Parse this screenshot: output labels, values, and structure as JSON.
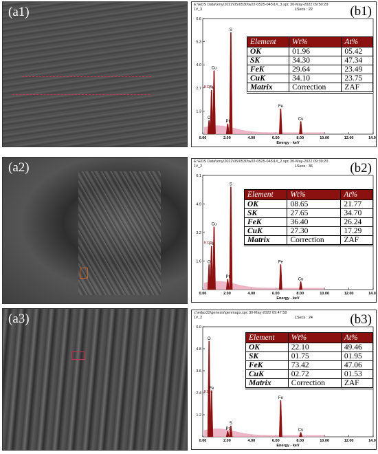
{
  "rows": [
    {
      "sem_label": "(a1)",
      "eds_label": "(b1)",
      "eds_path": "E:\\EDS Data\\xmy\\2022\\05\\0530\\w22-0525-045\\1#_3.spc  30-May-2022 09:50:29",
      "eds_sub": "1#_3",
      "lsecs": "LSecs : 22",
      "y_ticks": [
        "6.6",
        "5.3",
        "4.0",
        "2.7",
        "1.3"
      ],
      "peaks": [
        {
          "name": "O",
          "x": 0.52,
          "h": 0.12
        },
        {
          "name": "Fe",
          "x": 0.72,
          "h": 0.38
        },
        {
          "name": "Cu",
          "x": 0.93,
          "h": 0.55
        },
        {
          "name": "Pt",
          "x": 2.05,
          "h": 0.09
        },
        {
          "name": "S",
          "x": 2.31,
          "h": 0.88
        },
        {
          "name": "Fe",
          "x": 6.4,
          "h": 0.22
        },
        {
          "name": "Cu",
          "x": 8.05,
          "h": 0.11
        }
      ],
      "table": {
        "headers": [
          "Element",
          "Wt%",
          "At%"
        ],
        "rows": [
          [
            "OK",
            "01.96",
            "05.42"
          ],
          [
            "SK",
            "34.30",
            "47.34"
          ],
          [
            "FeK",
            "29.64",
            "23.49"
          ],
          [
            "CuK",
            "34.10",
            "23.75"
          ],
          [
            "Matrix",
            "Correction",
            "ZAF"
          ]
        ]
      }
    },
    {
      "sem_label": "(a2)",
      "eds_label": "(b2)",
      "eds_path": "E:\\EDS Data\\xmy\\2022\\05\\0530\\w22-0525-045\\1#_2.spc  30-May-2022 09:39:20",
      "eds_sub": "1#_2",
      "lsecs": "LSecs : 36",
      "y_ticks": [
        "6.1",
        "4.9",
        "3.2",
        "1.6"
      ],
      "peaks": [
        {
          "name": "O",
          "x": 0.52,
          "h": 0.22
        },
        {
          "name": "Fe",
          "x": 0.72,
          "h": 0.38
        },
        {
          "name": "Cu",
          "x": 0.93,
          "h": 0.55
        },
        {
          "name": "Pt",
          "x": 2.05,
          "h": 0.09
        },
        {
          "name": "S",
          "x": 2.31,
          "h": 0.9
        },
        {
          "name": "Fe",
          "x": 6.4,
          "h": 0.22
        },
        {
          "name": "Cu",
          "x": 8.05,
          "h": 0.07
        }
      ],
      "table": {
        "headers": [
          "Element",
          "Wt%",
          "At%"
        ],
        "rows": [
          [
            "OK",
            "08.65",
            "21.77"
          ],
          [
            "SK",
            "27.65",
            "34.70"
          ],
          [
            "FeK",
            "36.40",
            "26.24"
          ],
          [
            "CuK",
            "27.30",
            "17.29"
          ],
          [
            "Matrix",
            "Correction",
            "ZAF"
          ]
        ]
      }
    },
    {
      "sem_label": "(a3)",
      "eds_label": "(b3)",
      "eds_path": "c:\\edax32\\genesis\\genmaps.spc  30-May-2022 09:47:58",
      "eds_sub": "1#_2",
      "lsecs": "LSecs : 24",
      "y_ticks": [
        "6.0",
        "4.8",
        "3.6",
        "2.4",
        "1.2"
      ],
      "peaks": [
        {
          "name": "O",
          "x": 0.52,
          "h": 0.87
        },
        {
          "name": "Fe",
          "x": 0.72,
          "h": 0.42
        },
        {
          "name": "Pt",
          "x": 2.05,
          "h": 0.05
        },
        {
          "name": "S",
          "x": 2.31,
          "h": 0.1
        },
        {
          "name": "Fe",
          "x": 6.4,
          "h": 0.33
        },
        {
          "name": "Cu",
          "x": 8.05,
          "h": 0.04
        }
      ],
      "table": {
        "headers": [
          "Element",
          "Wt%",
          "At%"
        ],
        "rows": [
          [
            "OK",
            "22.10",
            "49.46"
          ],
          [
            "SK",
            "01.75",
            "01.95"
          ],
          [
            "FeK",
            "73.42",
            "47.06"
          ],
          [
            "CuK",
            "02.72",
            "01.53"
          ],
          [
            "Matrix",
            "Correction",
            "ZAF"
          ]
        ]
      }
    }
  ],
  "axis": {
    "x_label": "Energy - keV",
    "y_label": "KCnt",
    "x_ticks": [
      "0.00",
      "2.00",
      "4.00",
      "6.00",
      "8.00",
      "10.00",
      "12.00",
      "14.00"
    ],
    "x_max": 14.0
  },
  "colors": {
    "spectrum_fill": "#e8a3b8",
    "spectrum_line": "#8b1010",
    "table_header": "#8b1010",
    "sem_dark": "#3a3a3a"
  }
}
